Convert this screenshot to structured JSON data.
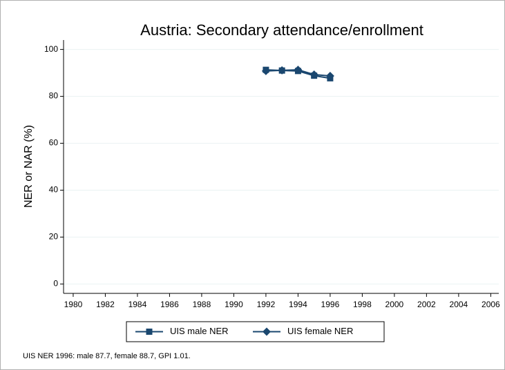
{
  "chart_data": {
    "type": "line",
    "title": "Austria: Secondary attendance/enrollment",
    "y_label": "NER or NAR (%)",
    "note": "UIS NER 1996: male 87.7, female 88.7, GPI 1.01.",
    "x": [
      1992,
      1993,
      1994,
      1995,
      1996
    ],
    "series": [
      {
        "name": "UIS male NER",
        "color": "#1a476f",
        "marker": "square",
        "values": [
          91.3,
          91.0,
          90.8,
          88.8,
          87.7
        ]
      },
      {
        "name": "UIS female NER",
        "color": "#1a476f",
        "marker": "diamond",
        "values": [
          90.8,
          91.1,
          91.3,
          89.3,
          88.7
        ]
      }
    ],
    "xlim": [
      1979.4,
      2006.5
    ],
    "xticks": [
      1980,
      1982,
      1984,
      1986,
      1988,
      1990,
      1992,
      1994,
      1996,
      1998,
      2000,
      2002,
      2004,
      2006
    ],
    "ylim": [
      -4,
      104
    ],
    "yticks": [
      0,
      20,
      40,
      60,
      80,
      100
    ],
    "grid": true,
    "legend": "bottom"
  }
}
